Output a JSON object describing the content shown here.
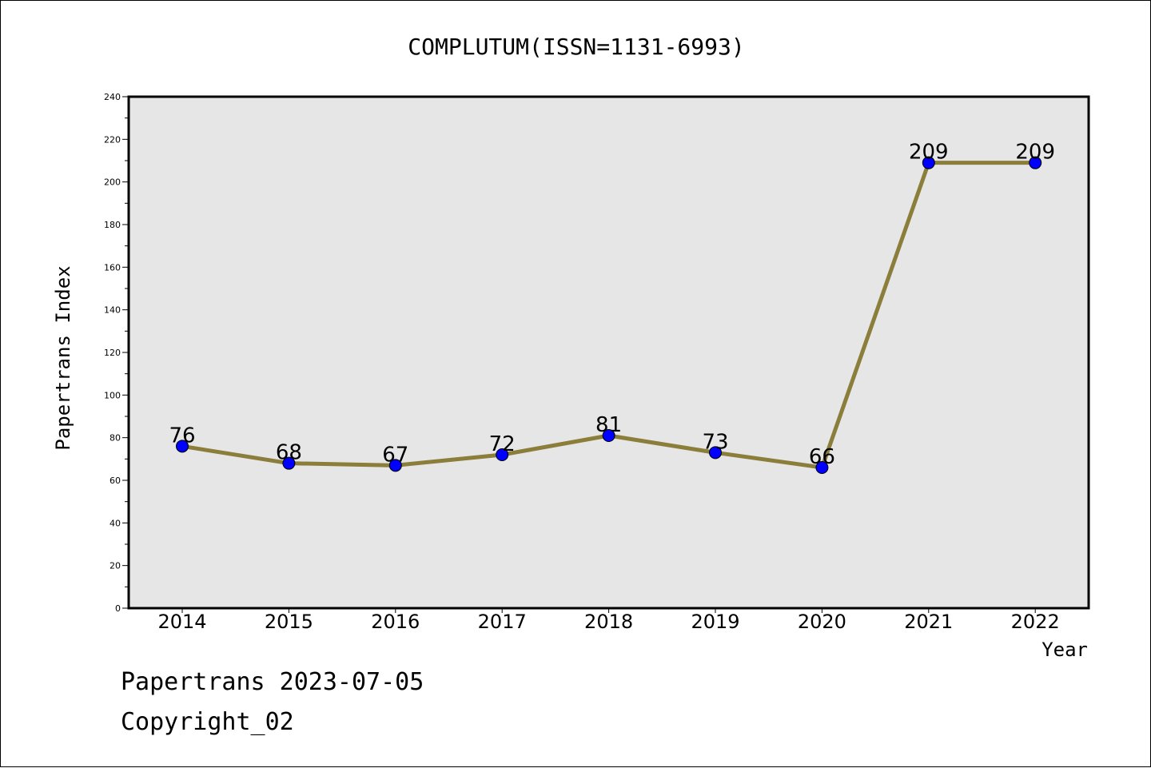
{
  "chart_data": {
    "type": "line",
    "title": "COMPLUTUM(ISSN=1131-6993)",
    "xlabel": "Year",
    "ylabel": "Papertrans Index",
    "categories": [
      "2014",
      "2015",
      "2016",
      "2017",
      "2018",
      "2019",
      "2020",
      "2021",
      "2022"
    ],
    "series": [
      {
        "values": [
          76,
          68,
          67,
          72,
          81,
          73,
          66,
          209,
          209
        ]
      }
    ],
    "data_labels": [
      "76",
      "68",
      "67",
      "72",
      "81",
      "73",
      "66",
      "209",
      "209"
    ],
    "ylim": [
      0,
      240
    ],
    "yticks": [
      "0",
      "20",
      "40",
      "60",
      "80",
      "100",
      "120",
      "140",
      "160",
      "180",
      "200",
      "220",
      "240"
    ],
    "grid": false,
    "colors": {
      "line": "#8B7D3A",
      "marker": "#0000FF",
      "plot_background": "#E6E6E6"
    }
  },
  "footer": {
    "line1": "Papertrans 2023-07-05",
    "line2": "Copyright_02"
  }
}
